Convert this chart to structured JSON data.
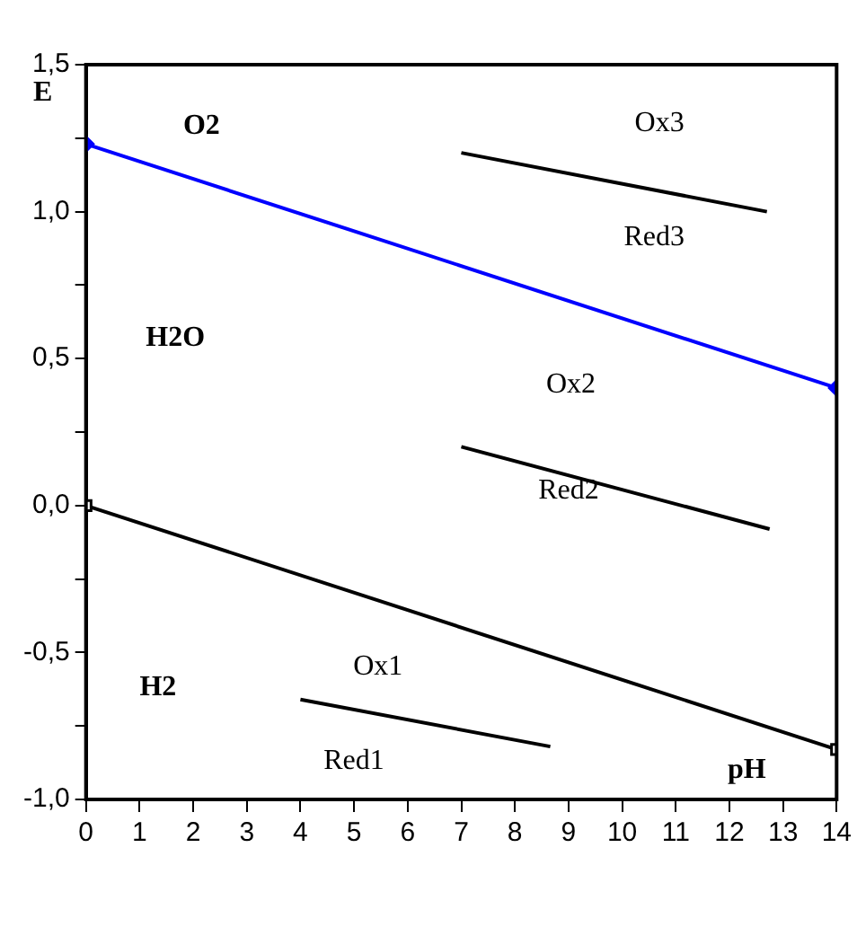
{
  "chart_data": {
    "type": "line",
    "xlabel": "pH",
    "ylabel": "E",
    "xlim": [
      0,
      14
    ],
    "xticks": [
      0,
      1,
      2,
      3,
      4,
      5,
      6,
      7,
      8,
      9,
      10,
      11,
      12,
      13,
      14
    ],
    "ylim": [
      -1.0,
      1.5
    ],
    "yticks": [
      {
        "value": -1.0,
        "label": "-1,0"
      },
      {
        "value": -0.75,
        "label": null
      },
      {
        "value": -0.5,
        "label": "-0,5"
      },
      {
        "value": -0.25,
        "label": null
      },
      {
        "value": 0,
        "label": "0,0"
      },
      {
        "value": 0.25,
        "label": null
      },
      {
        "value": 0.5,
        "label": "0,5"
      },
      {
        "value": 0.75,
        "label": null
      },
      {
        "value": 1.0,
        "label": "1,0"
      },
      {
        "value": 1.25,
        "label": null
      },
      {
        "value": 1.5,
        "label": "1,5"
      }
    ],
    "grid": false,
    "legend": false,
    "series": [
      {
        "color": "#0000ff",
        "x": [
          0,
          14
        ],
        "values": [
          1.23,
          0.4
        ],
        "marker": "diamond"
      },
      {
        "color": "#000000",
        "x": [
          0,
          14
        ],
        "values": [
          0,
          -0.83
        ],
        "marker": "square"
      },
      {
        "color": "#000000",
        "x": [
          7,
          12.7
        ],
        "values": [
          1.2,
          1.0
        ],
        "marker": "none"
      },
      {
        "color": "#000000",
        "x": [
          7,
          12.75
        ],
        "values": [
          0.2,
          -0.08
        ],
        "marker": "none"
      },
      {
        "color": "#000000",
        "x": [
          4,
          8.66
        ],
        "values": [
          -0.66,
          -0.82
        ],
        "marker": "none"
      }
    ],
    "annotations": [
      "O2",
      "H2O",
      "H2",
      "Ox3",
      "Red3",
      "Ox2",
      "Red2",
      "Ox1",
      "Red1"
    ]
  }
}
